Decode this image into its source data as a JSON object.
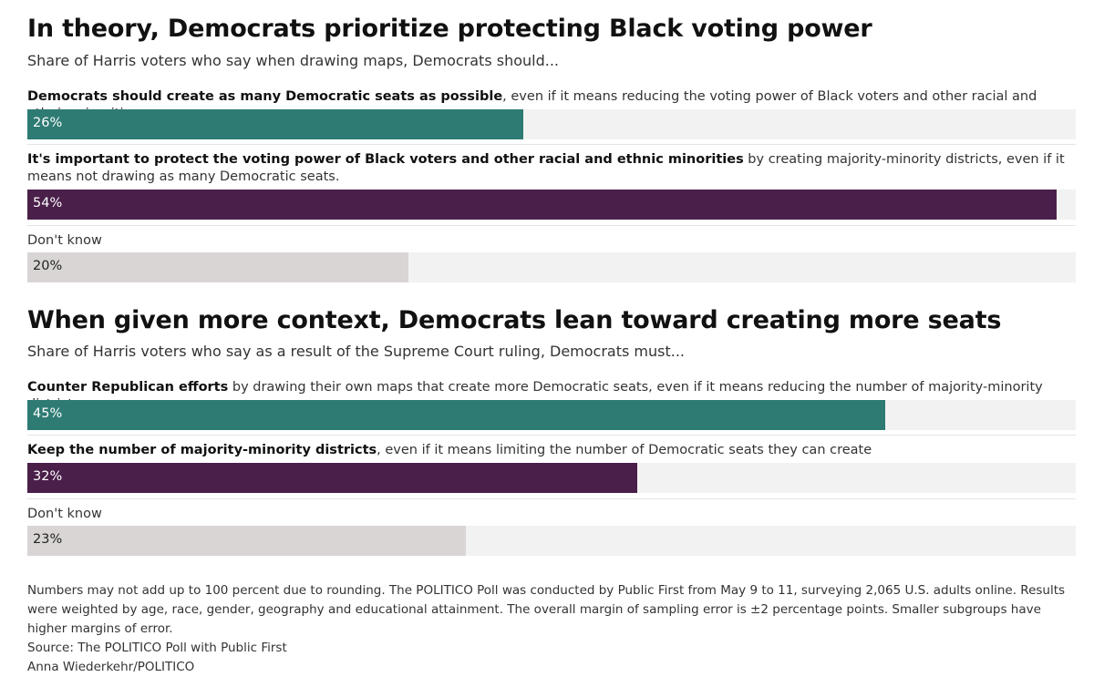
{
  "colors": {
    "teal": "#2e7b74",
    "purple": "#4a1f4a",
    "gray": "#d9d5d5",
    "track": "#f2f2f2"
  },
  "chart_data": [
    {
      "type": "bar",
      "title": "In theory, Democrats prioritize protecting Black voting power",
      "subtitle": "Share of Harris voters who say when drawing maps, Democrats should...",
      "xlim": [
        0,
        55
      ],
      "categories": [
        {
          "bold": "Democrats should create as many Democratic seats as possible",
          "rest": ", even if it means reducing the voting power of Black voters and other racial and ethnic minorities.",
          "value": 26,
          "label": "26%",
          "color": "#2e7b74",
          "text_color": "#ffffff"
        },
        {
          "bold": "It's important to protect the voting power of Black voters and other racial and ethnic minorities",
          "rest": " by creating majority-minority districts, even if it means not drawing as many Democratic seats.",
          "value": 54,
          "label": "54%",
          "color": "#4a1f4a",
          "text_color": "#ffffff"
        },
        {
          "bold": "",
          "rest": "Don't know",
          "value": 20,
          "label": "20%",
          "color": "#d9d5d5",
          "text_color": "#222222"
        }
      ]
    },
    {
      "type": "bar",
      "title": "When given more context, Democrats lean toward creating more seats",
      "subtitle": "Share of Harris voters who say as a result of the Supreme Court ruling, Democrats must...",
      "xlim": [
        0,
        55
      ],
      "categories": [
        {
          "bold": "Counter Republican efforts",
          "rest": " by drawing their own maps that create more Democratic seats, even if it means reducing the number of majority-minority districts",
          "value": 45,
          "label": "45%",
          "color": "#2e7b74",
          "text_color": "#ffffff"
        },
        {
          "bold": "Keep the number of majority-minority districts",
          "rest": ", even if it means limiting the number of Democratic seats they can create",
          "value": 32,
          "label": "32%",
          "color": "#4a1f4a",
          "text_color": "#ffffff"
        },
        {
          "bold": "",
          "rest": "Don't know",
          "value": 23,
          "label": "23%",
          "color": "#d9d5d5",
          "text_color": "#222222"
        }
      ]
    }
  ],
  "notes": {
    "methodology": "Numbers may not add up to 100 percent due to rounding. The POLITICO Poll was conducted by Public First from May 9 to 11, surveying 2,065 U.S. adults online. Results were weighted by age, race, gender, geography and educational attainment. The overall margin of sampling error is ±2 percentage points. Smaller subgroups have higher margins of error.",
    "source": "Source: The POLITICO Poll with Public First",
    "credit": "Anna Wiederkehr/POLITICO"
  }
}
